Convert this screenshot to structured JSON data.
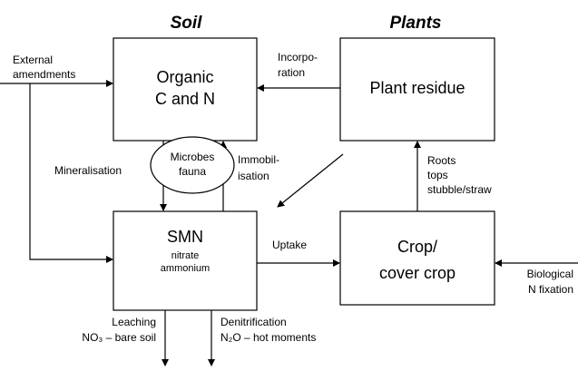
{
  "headers": {
    "soil": "Soil",
    "plants": "Plants"
  },
  "nodes": {
    "organic": [
      "Organic",
      "C and N"
    ],
    "plant_residue": "Plant residue",
    "smn": {
      "title": "SMN",
      "details": [
        "nitrate",
        "ammonium"
      ]
    },
    "crop": [
      "Crop/",
      "cover crop"
    ],
    "microbes": [
      "Microbes",
      "fauna"
    ]
  },
  "flows": {
    "external": [
      "External",
      "amendments"
    ],
    "incorporation": [
      "Incorpo-",
      "ration"
    ],
    "mineralisation": "Mineralisation",
    "immobilisation": [
      "Immobil-",
      "isation"
    ],
    "uptake": "Uptake",
    "roots": [
      "Roots",
      "tops",
      "stubble/straw"
    ],
    "fixation": [
      "Biological",
      "N fixation"
    ],
    "leaching": [
      "Leaching",
      "NO₃ – bare soil"
    ],
    "denitrification": [
      "Denitrification",
      "N₂O – hot moments"
    ]
  }
}
